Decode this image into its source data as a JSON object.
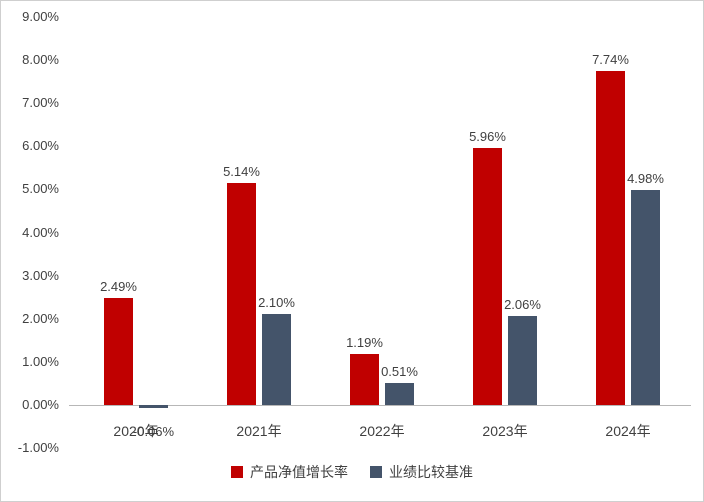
{
  "chart_data": {
    "type": "bar",
    "title": "",
    "categories": [
      "2020年",
      "2021年",
      "2022年",
      "2023年",
      "2024年"
    ],
    "series": [
      {
        "name": "产品净值增长率",
        "color": "#C00000",
        "values": [
          2.49,
          5.14,
          1.19,
          5.96,
          7.74
        ],
        "labels": [
          "2.49%",
          "5.14%",
          "1.19%",
          "5.96%",
          "7.74%"
        ]
      },
      {
        "name": "业绩比较基准",
        "color": "#44546A",
        "values": [
          -0.06,
          2.1,
          0.51,
          2.06,
          4.98
        ],
        "labels": [
          "-0.06%",
          "2.10%",
          "0.51%",
          "2.06%",
          "4.98%"
        ]
      }
    ],
    "y_axis": {
      "ticks": [
        "9.00%",
        "8.00%",
        "7.00%",
        "6.00%",
        "5.00%",
        "4.00%",
        "3.00%",
        "2.00%",
        "1.00%",
        "0.00%",
        "-1.00%"
      ],
      "min": -1,
      "max": 9,
      "step": 1
    },
    "legend_position": "bottom",
    "grid": false,
    "colors": {
      "axis_line": "#B7B7B7",
      "text": "#404040",
      "background": "#FFFFFF",
      "frame_border": "#CFCFCF"
    }
  }
}
